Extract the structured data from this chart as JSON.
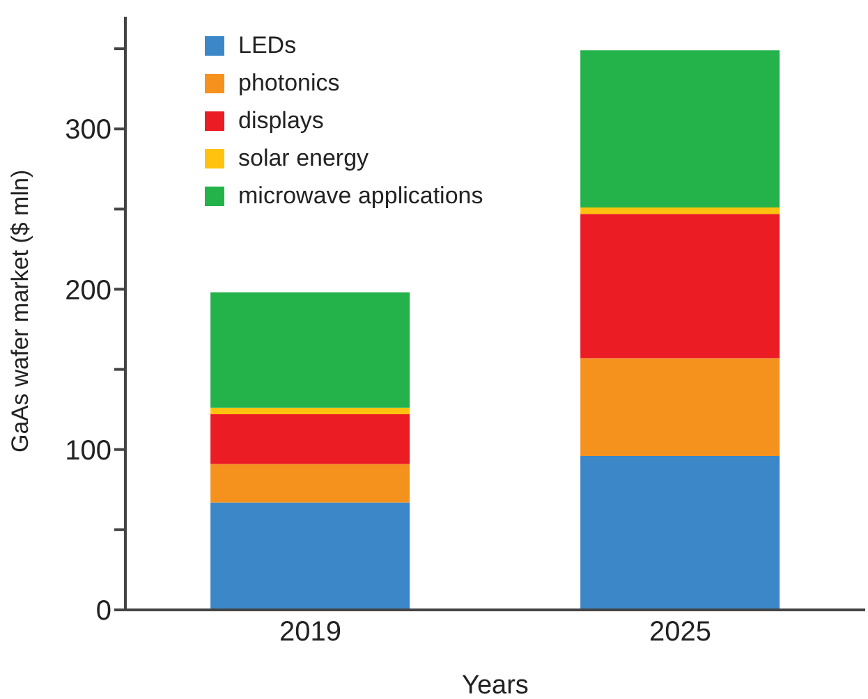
{
  "chart_data": {
    "type": "bar",
    "stacked": true,
    "xlabel": "Years",
    "ylabel": "GaAs wafer market ($ mln)",
    "categories": [
      "2019",
      "2025"
    ],
    "series": [
      {
        "name": "LEDs",
        "color": "#3b87c7",
        "values": [
          67,
          96
        ]
      },
      {
        "name": "photonics",
        "color": "#f5921e",
        "values": [
          24,
          61
        ]
      },
      {
        "name": "displays",
        "color": "#ec1c24",
        "values": [
          31,
          90
        ]
      },
      {
        "name": "solar energy",
        "color": "#ffc20e",
        "values": [
          4,
          4
        ]
      },
      {
        "name": "microwave applications",
        "color": "#24b24b",
        "values": [
          72,
          98
        ]
      }
    ],
    "ylim": [
      0,
      370
    ],
    "yticks": [
      0,
      {
        "value": 50,
        "label": null
      },
      100,
      {
        "value": 150,
        "label": null
      },
      200,
      {
        "value": 250,
        "label": null
      },
      300,
      {
        "value": 350,
        "label": null
      }
    ],
    "legend": "top left",
    "grid": false
  }
}
